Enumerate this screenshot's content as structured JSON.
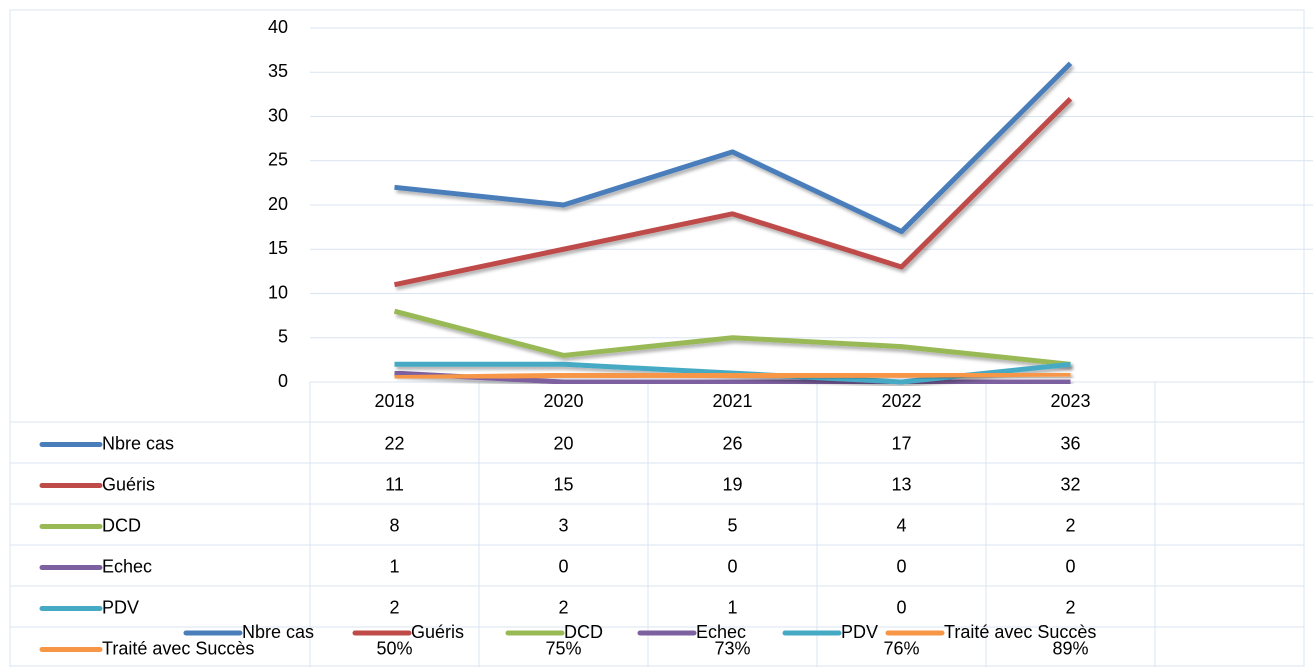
{
  "chart_data": {
    "type": "line",
    "categories": [
      "2018",
      "2020",
      "2021",
      "2022",
      "2023",
      null
    ],
    "series": [
      {
        "name": "Nbre cas",
        "color": "#4a7ebb",
        "values": [
          22,
          20,
          26,
          17,
          36,
          null
        ]
      },
      {
        "name": "Guéris",
        "color": "#be4b48",
        "values": [
          11,
          15,
          19,
          13,
          32,
          null
        ]
      },
      {
        "name": "DCD",
        "color": "#98b954",
        "values": [
          8,
          3,
          5,
          4,
          2,
          null
        ]
      },
      {
        "name": "Echec",
        "color": "#7d60a0",
        "values": [
          1,
          0,
          0,
          0,
          0,
          null
        ]
      },
      {
        "name": "PDV",
        "color": "#46aac5",
        "values": [
          2,
          2,
          1,
          0,
          2,
          null
        ]
      },
      {
        "name": "Traité avec Succès",
        "color": "#f79646",
        "values": [
          0.5,
          0.75,
          0.73,
          0.76,
          0.89,
          null
        ],
        "value_labels": [
          "50%",
          "75%",
          "73%",
          "76%",
          "89%",
          null
        ]
      }
    ],
    "ylim": [
      0,
      40
    ],
    "yticks": [
      0,
      5,
      10,
      15,
      20,
      25,
      30,
      35,
      40
    ],
    "grid": true,
    "data_table": true,
    "legend": "bottom"
  }
}
